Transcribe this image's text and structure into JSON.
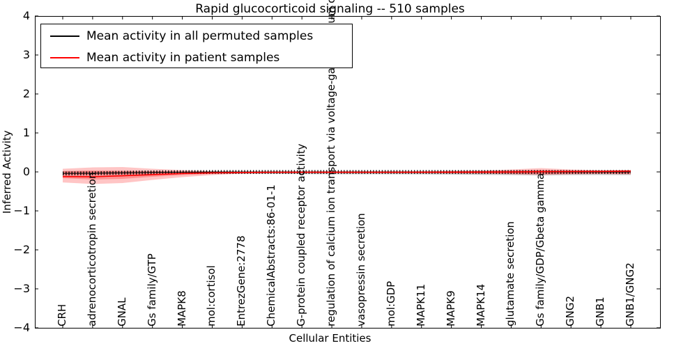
{
  "figure": {
    "title": "Rapid glucocorticoid signaling -- 510 samples",
    "xlabel": "Cellular Entities",
    "ylabel": "Inferred Activity"
  },
  "legend": {
    "entries": [
      {
        "label": "Mean activity in all permuted samples",
        "color": "#000000"
      },
      {
        "label": "Mean activity in patient samples",
        "color": "#ff0000"
      }
    ],
    "position": "upper left"
  },
  "chart_data": {
    "type": "line",
    "title": "Rapid glucocorticoid signaling -- 510 samples",
    "xlabel": "Cellular Entities",
    "ylabel": "Inferred Activity",
    "ylim": [
      -4,
      4
    ],
    "ytick_labels": [
      "4",
      "3",
      "2",
      "1",
      "0",
      "−1",
      "−2",
      "−3",
      "−4"
    ],
    "yticks": [
      4,
      3,
      2,
      1,
      0,
      -1,
      -2,
      -3,
      -4
    ],
    "grid": false,
    "legend_position": "upper left",
    "categories": [
      "CRH",
      "adrenocorticotropin secretion",
      "GNAL",
      "Gs family/GTP",
      "MAPK8",
      "mol:cortisol",
      "EntrezGene:2778",
      "ChemicalAbstracts:86-01-1",
      "G-protein coupled receptor activity",
      "regulation of calcium ion transport via voltage-gated calcium channels",
      "vasopressin secretion",
      "mol:GDP",
      "MAPK11",
      "MAPK9",
      "MAPK14",
      "glutamate secretion",
      "Gs family/GDP/Gbeta gamma",
      "GNG2",
      "GNB1",
      "GNB1/GNG2"
    ],
    "series": [
      {
        "name": "Mean activity in all permuted samples",
        "color": "#000000",
        "style": "railroad-dashed",
        "values": [
          -0.04,
          -0.036,
          -0.022,
          -0.012,
          -0.006,
          -0.003,
          -0.002,
          -0.002,
          -0.002,
          -0.002,
          -0.002,
          -0.002,
          -0.002,
          -0.002,
          -0.002,
          -0.002,
          -0.002,
          -0.002,
          -0.002,
          -0.002
        ]
      },
      {
        "name": "Mean activity in patient samples",
        "color": "#ff0000",
        "style": "solid",
        "values": [
          -0.12,
          -0.125,
          -0.1,
          -0.07,
          -0.042,
          -0.024,
          -0.014,
          -0.009,
          -0.007,
          -0.007,
          -0.007,
          -0.007,
          -0.006,
          -0.005,
          -0.004,
          -0.002,
          0.005,
          0.01,
          0.013,
          0.02
        ]
      }
    ],
    "bands": [
      {
        "name": "permuted-spread",
        "color": "#999999",
        "opacity": 0.5,
        "upper": [
          0.02,
          0.02,
          0.018,
          0.015,
          0.012,
          0.01,
          0.012,
          0.015,
          0.018,
          0.02,
          0.02,
          0.02,
          0.022,
          0.027,
          0.032,
          0.036,
          0.04,
          0.036,
          0.034,
          0.038
        ],
        "lower": [
          -0.06,
          -0.06,
          -0.055,
          -0.05,
          -0.046,
          -0.044,
          -0.046,
          -0.05,
          -0.055,
          -0.06,
          -0.06,
          -0.06,
          -0.062,
          -0.068,
          -0.075,
          -0.08,
          -0.09,
          -0.08,
          -0.078,
          -0.08
        ]
      },
      {
        "name": "patient-spread-outer",
        "color": "#ff2a2a",
        "opacity": 0.27,
        "upper": [
          0.08,
          0.115,
          0.125,
          0.08,
          0.045,
          0.018,
          0.009,
          0.006,
          0.005,
          0.005,
          0.005,
          0.006,
          0.008,
          0.027,
          0.032,
          0.063,
          0.098,
          0.063,
          0.045,
          0.054
        ],
        "lower": [
          -0.27,
          -0.31,
          -0.285,
          -0.205,
          -0.135,
          -0.08,
          -0.045,
          -0.032,
          -0.028,
          -0.028,
          -0.028,
          -0.03,
          -0.035,
          -0.04,
          -0.045,
          -0.063,
          -0.08,
          -0.063,
          -0.054,
          -0.063
        ]
      },
      {
        "name": "patient-spread-inner",
        "color": "#ff1a1a",
        "opacity": 0.3,
        "upper": [
          0.018,
          0.036,
          0.027,
          0.018,
          0.009,
          0.004,
          0.004,
          0.004,
          0.004,
          0.004,
          0.004,
          0.004,
          0.004,
          0.013,
          0.018,
          0.032,
          0.05,
          0.032,
          0.025,
          0.036
        ],
        "lower": [
          -0.16,
          -0.196,
          -0.178,
          -0.125,
          -0.08,
          -0.05,
          -0.03,
          -0.03,
          -0.03,
          -0.03,
          -0.03,
          -0.03,
          -0.03,
          -0.035,
          -0.04,
          -0.045,
          -0.054,
          -0.045,
          -0.036,
          -0.045
        ]
      }
    ]
  }
}
